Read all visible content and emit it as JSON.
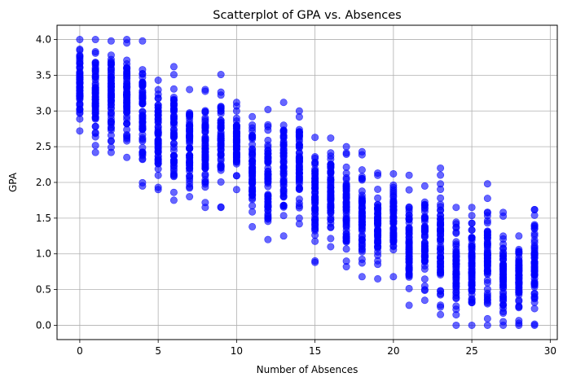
{
  "chart_data": {
    "type": "scatter",
    "title": "Scatterplot of GPA vs. Absences",
    "xlabel": "Number of Absences",
    "ylabel": "GPA",
    "xlim": [
      -1.45,
      30.45
    ],
    "ylim": [
      -0.2,
      4.2
    ],
    "xticks": [
      0,
      5,
      10,
      15,
      20,
      25,
      30
    ],
    "yticks": [
      0.0,
      0.5,
      1.0,
      1.5,
      2.0,
      2.5,
      3.0,
      3.5,
      4.0
    ],
    "xtick_labels": [
      "0",
      "5",
      "10",
      "15",
      "20",
      "25",
      "30"
    ],
    "ytick_labels": [
      "0.0",
      "0.5",
      "1.0",
      "1.5",
      "2.0",
      "2.5",
      "3.0",
      "3.5",
      "4.0"
    ],
    "grid": true,
    "legend": false,
    "marker_color": "#0000ff",
    "marker_alpha": 0.6,
    "series": [
      {
        "groups": [
          {
            "x": 0,
            "ymin": 2.72,
            "ymax": 4.0
          },
          {
            "x": 1,
            "ymin": 2.42,
            "ymax": 4.0
          },
          {
            "x": 2,
            "ymin": 2.42,
            "ymax": 3.98
          },
          {
            "x": 3,
            "ymin": 2.35,
            "ymax": 4.0
          },
          {
            "x": 4,
            "ymin": 1.95,
            "ymax": 3.98
          },
          {
            "x": 5,
            "ymin": 1.9,
            "ymax": 3.43
          },
          {
            "x": 6,
            "ymin": 1.75,
            "ymax": 3.62
          },
          {
            "x": 7,
            "ymin": 1.8,
            "ymax": 3.3
          },
          {
            "x": 8,
            "ymin": 1.65,
            "ymax": 3.3
          },
          {
            "x": 9,
            "ymin": 1.65,
            "ymax": 3.51
          },
          {
            "x": 10,
            "ymin": 1.9,
            "ymax": 3.12
          },
          {
            "x": 11,
            "ymin": 1.38,
            "ymax": 2.92
          },
          {
            "x": 12,
            "ymin": 1.2,
            "ymax": 3.02
          },
          {
            "x": 13,
            "ymin": 1.25,
            "ymax": 3.12
          },
          {
            "x": 14,
            "ymin": 1.42,
            "ymax": 3.0
          },
          {
            "x": 15,
            "ymin": 0.88,
            "ymax": 2.63
          },
          {
            "x": 16,
            "ymin": 1.1,
            "ymax": 2.62
          },
          {
            "x": 17,
            "ymin": 0.82,
            "ymax": 2.5
          },
          {
            "x": 18,
            "ymin": 0.68,
            "ymax": 2.43
          },
          {
            "x": 19,
            "ymin": 0.65,
            "ymax": 2.13
          },
          {
            "x": 20,
            "ymin": 0.68,
            "ymax": 2.12
          },
          {
            "x": 21,
            "ymin": 0.28,
            "ymax": 2.1
          },
          {
            "x": 22,
            "ymin": 0.35,
            "ymax": 1.95
          },
          {
            "x": 23,
            "ymin": 0.15,
            "ymax": 2.2
          },
          {
            "x": 24,
            "ymin": 0.0,
            "ymax": 1.65
          },
          {
            "x": 25,
            "ymin": 0.0,
            "ymax": 1.65
          },
          {
            "x": 26,
            "ymin": 0.0,
            "ymax": 1.98
          },
          {
            "x": 27,
            "ymin": 0.0,
            "ymax": 1.58
          },
          {
            "x": 28,
            "ymin": 0.0,
            "ymax": 1.25
          },
          {
            "x": 29,
            "ymin": 0.0,
            "ymax": 1.62
          }
        ]
      }
    ]
  }
}
